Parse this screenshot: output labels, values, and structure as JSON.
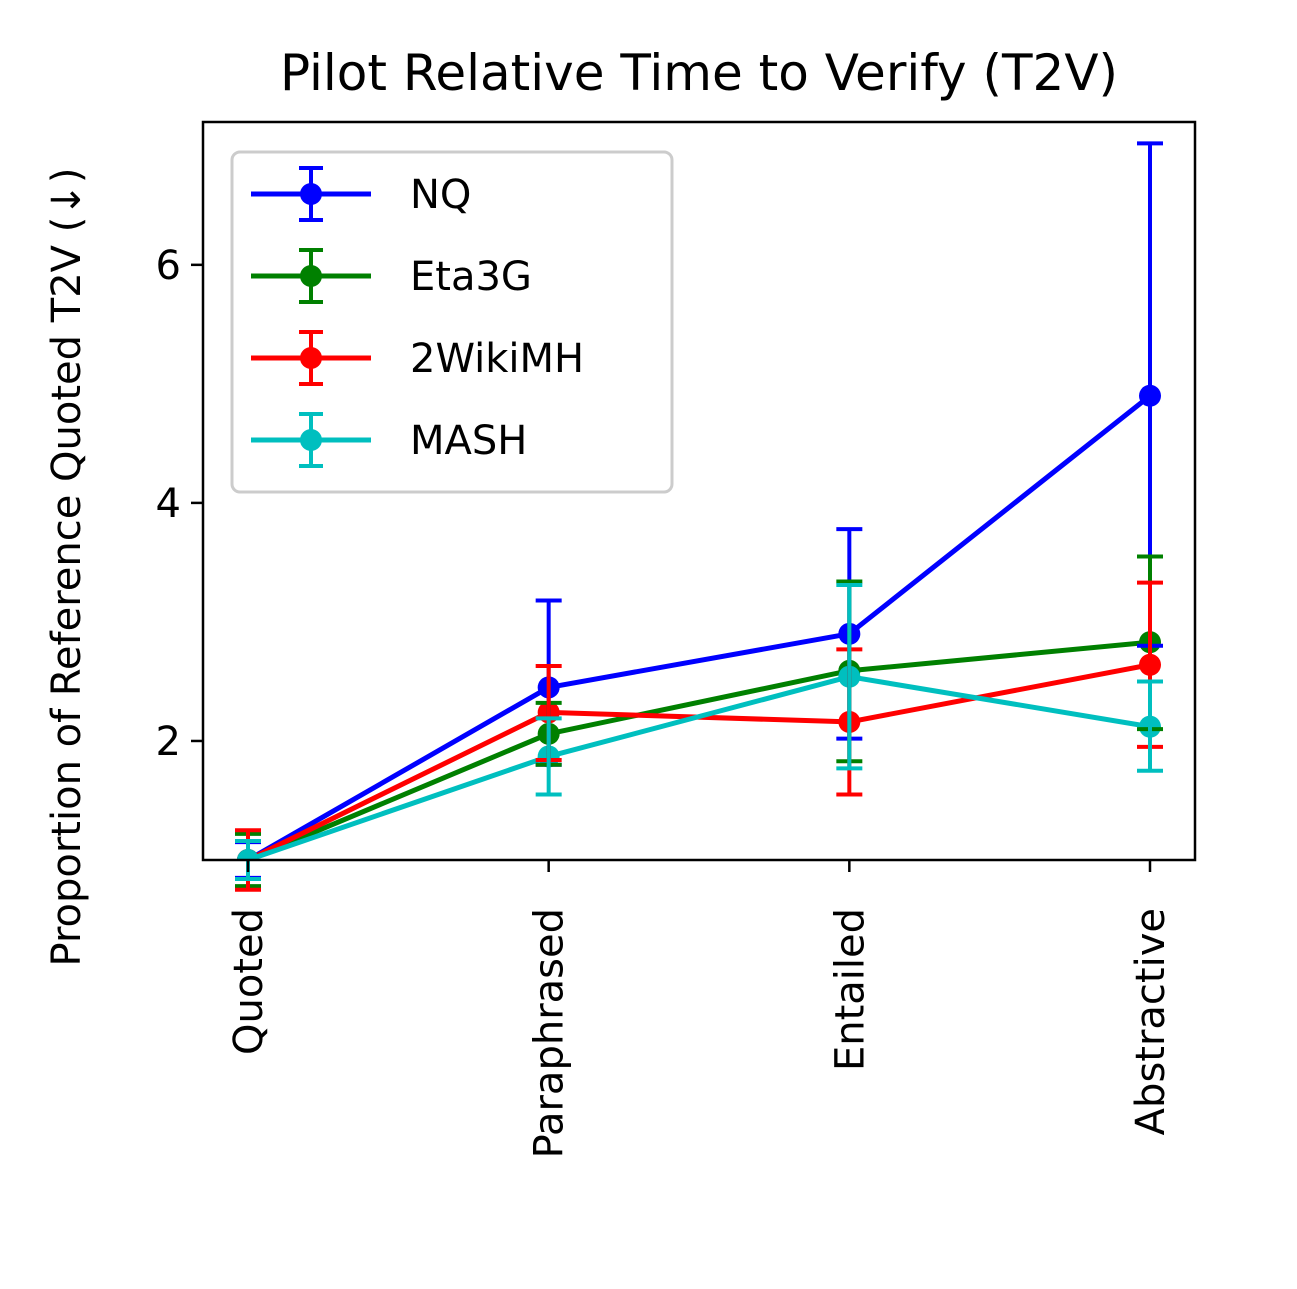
{
  "chart_data": {
    "type": "line",
    "title": "Pilot Relative Time to Verify (T2V)",
    "xlabel": "",
    "ylabel": "Proportion of Reference Quoted T2V (↓)",
    "categories": [
      "Quoted",
      "Paraphrased",
      "Entailed",
      "Abstractive"
    ],
    "ylim": [
      1.0,
      7.2
    ],
    "yticks": [
      2,
      4,
      6
    ],
    "grid": false,
    "legend_position": "top-left",
    "error_bars": true,
    "series": [
      {
        "name": "NQ",
        "color": "#0000ff",
        "values": [
          1.0,
          2.45,
          2.9,
          4.9
        ],
        "err_low": [
          0.85,
          1.8,
          2.02,
          2.8
        ],
        "err_high": [
          1.15,
          3.18,
          3.78,
          7.02
        ]
      },
      {
        "name": "Eta3G",
        "color": "#008000",
        "values": [
          1.0,
          2.06,
          2.59,
          2.83
        ],
        "err_low": [
          0.78,
          1.8,
          1.83,
          2.1
        ],
        "err_high": [
          1.22,
          2.32,
          3.34,
          3.55
        ]
      },
      {
        "name": "2WikiMH",
        "color": "#ff0000",
        "values": [
          1.0,
          2.24,
          2.16,
          2.64
        ],
        "err_low": [
          0.75,
          1.84,
          1.55,
          1.95
        ],
        "err_high": [
          1.25,
          2.63,
          2.77,
          3.33
        ]
      },
      {
        "name": "MASH",
        "color": "#00bfbf",
        "values": [
          1.0,
          1.87,
          2.54,
          2.12
        ],
        "err_low": [
          0.84,
          1.55,
          1.77,
          1.75
        ],
        "err_high": [
          1.16,
          2.19,
          3.31,
          2.5
        ]
      }
    ]
  }
}
